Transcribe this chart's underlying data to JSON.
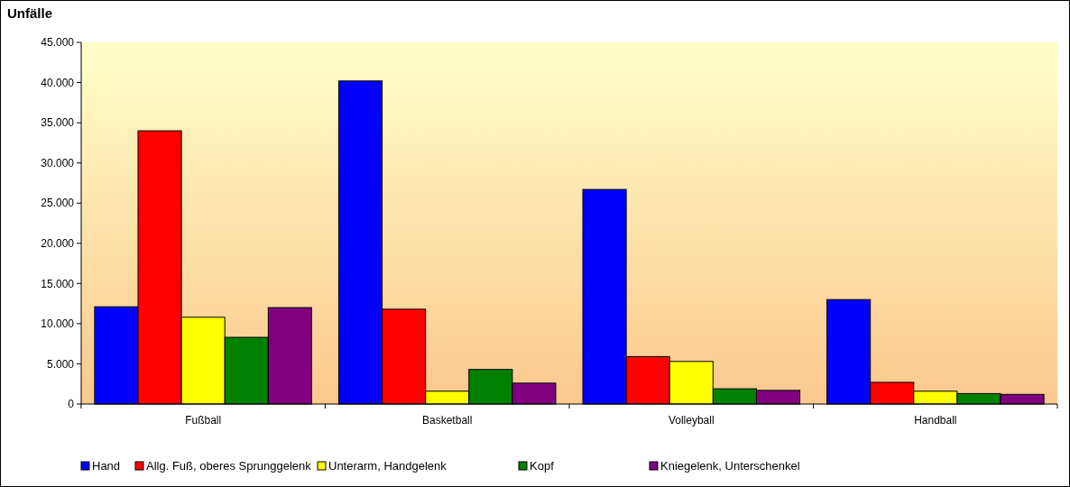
{
  "chart_data": {
    "type": "bar",
    "ylabel": "Unfälle",
    "categories": [
      "Fußball",
      "Basketball",
      "Volleyball",
      "Handball"
    ],
    "series": [
      {
        "name": "Hand",
        "color": "#0000ff",
        "values": [
          12100,
          40200,
          26700,
          13000
        ]
      },
      {
        "name": "Allg. Fuß, oberes Sprunggelenk",
        "color": "#ff0000",
        "values": [
          34000,
          11800,
          5900,
          2700
        ]
      },
      {
        "name": "Unterarm, Handgelenk",
        "color": "#ffff00",
        "values": [
          10800,
          1600,
          5300,
          1600
        ]
      },
      {
        "name": "Kopf",
        "color": "#008000",
        "values": [
          8300,
          4300,
          1900,
          1300
        ]
      },
      {
        "name": "Kniegelenk, Unterschenkel",
        "color": "#800080",
        "values": [
          12000,
          2600,
          1700,
          1200
        ]
      }
    ],
    "ylim": [
      0,
      45000
    ],
    "yticks": [
      {
        "value": 0,
        "label": "0"
      },
      {
        "value": 5000,
        "label": "5.000"
      },
      {
        "value": 10000,
        "label": "10.000"
      },
      {
        "value": 15000,
        "label": "15.000"
      },
      {
        "value": 20000,
        "label": "20.000"
      },
      {
        "value": 25000,
        "label": "25.000"
      },
      {
        "value": 30000,
        "label": "30.000"
      },
      {
        "value": 35000,
        "label": "35.000"
      },
      {
        "value": 40000,
        "label": "40.000"
      },
      {
        "value": 45000,
        "label": "45.000"
      }
    ],
    "grid": false,
    "legend": "bottom"
  }
}
